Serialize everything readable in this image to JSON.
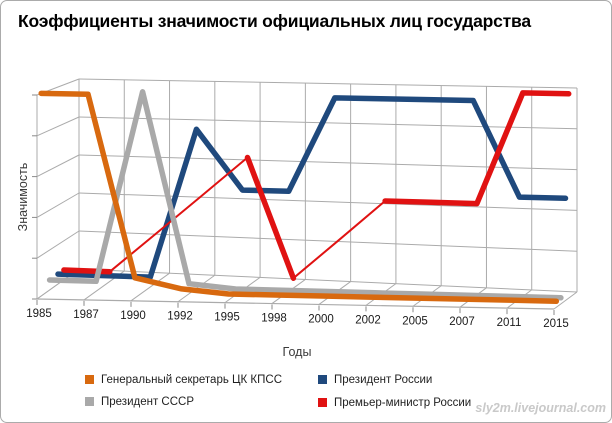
{
  "title": "Коэффициенты значимости официальных лиц государства",
  "axes": {
    "x_title": "Годы",
    "y_title": "Значимость"
  },
  "watermark": "sly2m.livejournal.com",
  "chart_data": {
    "type": "line",
    "projection": "3d",
    "title": "Коэффициенты значимости официальных лиц государства",
    "categories": [
      "1985",
      "1987",
      "1990",
      "1992",
      "1995",
      "1998",
      "2000",
      "2002",
      "2005",
      "2007",
      "2011",
      "2015"
    ],
    "xlabel": "Годы",
    "ylabel": "Значимость",
    "ylim": [
      0,
      1
    ],
    "y_gridline_step": 0.2,
    "grid": true,
    "legend_position": "bottom",
    "series": [
      {
        "name": "Генеральный секретарь ЦК КПСС",
        "color": "#D8690F",
        "values": [
          1.0,
          1.0,
          0.1,
          0.05,
          0.03,
          0.03,
          0.03,
          0.03,
          0.03,
          0.03,
          0.03,
          0.03
        ]
      },
      {
        "name": "Президент СССР",
        "color": "#A9A9A9",
        "values": [
          0.05,
          0.05,
          1.0,
          0.05,
          0.03,
          0.03,
          0.03,
          0.03,
          0.03,
          0.03,
          0.03,
          0.03
        ]
      },
      {
        "name": "Президент России",
        "color": "#1F497D",
        "values": [
          0.05,
          0.05,
          0.05,
          0.8,
          0.5,
          0.5,
          0.97,
          0.97,
          0.97,
          0.97,
          0.5,
          0.5
        ]
      },
      {
        "name": "Премьер-министр России",
        "color": "#E01212",
        "values": [
          0.05,
          0.05,
          0.25,
          0.45,
          0.65,
          0.05,
          0.25,
          0.45,
          0.45,
          0.45,
          1.0,
          1.0
        ],
        "ribbon_thin_rises": true
      }
    ]
  }
}
